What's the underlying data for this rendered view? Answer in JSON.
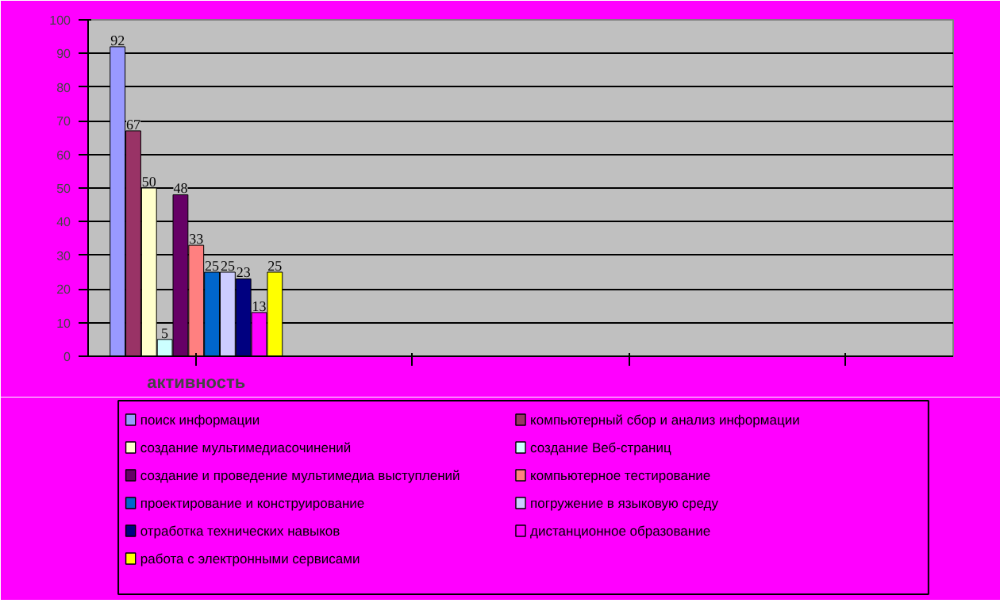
{
  "chart_data": {
    "type": "bar",
    "categories": [
      "активность",
      null,
      null,
      null
    ],
    "series": [
      {
        "name": "поиск информации",
        "color": "#9999ff",
        "values": [
          92,
          null,
          null,
          null
        ]
      },
      {
        "name": "компьютерный сбор и анализ информации",
        "color": "#993366",
        "values": [
          67,
          null,
          null,
          null
        ]
      },
      {
        "name": "создание мультимедиасочинений",
        "color": "#ffffcc",
        "values": [
          50,
          null,
          null,
          null
        ]
      },
      {
        "name": "создание Веб-страниц",
        "color": "#ccffff",
        "values": [
          5,
          null,
          null,
          null
        ]
      },
      {
        "name": "создание и проведение мультимедиа выступлений",
        "color": "#660066",
        "values": [
          48,
          null,
          null,
          null
        ]
      },
      {
        "name": "компьютерное тестирование",
        "color": "#ff8080",
        "values": [
          33,
          null,
          null,
          null
        ]
      },
      {
        "name": "проектирование и конструирование",
        "color": "#0066cc",
        "values": [
          25,
          null,
          null,
          null
        ]
      },
      {
        "name": "погружение в языковую среду",
        "color": "#ccccff",
        "values": [
          25,
          null,
          null,
          null
        ]
      },
      {
        "name": "отработка технических навыков",
        "color": "#000080",
        "values": [
          23,
          null,
          null,
          null
        ]
      },
      {
        "name": "дистанционное образование",
        "color": "#ff00ff",
        "values": [
          13,
          null,
          null,
          null
        ]
      },
      {
        "name": "работа с электронными сервисами",
        "color": "#ffff00",
        "values": [
          25,
          null,
          null,
          null
        ]
      }
    ],
    "ylim": [
      0,
      100
    ],
    "yticks": [
      0,
      10,
      20,
      30,
      40,
      50,
      60,
      70,
      80,
      90,
      100
    ],
    "grid": "y",
    "legend": "bottom",
    "data_labels": true
  }
}
